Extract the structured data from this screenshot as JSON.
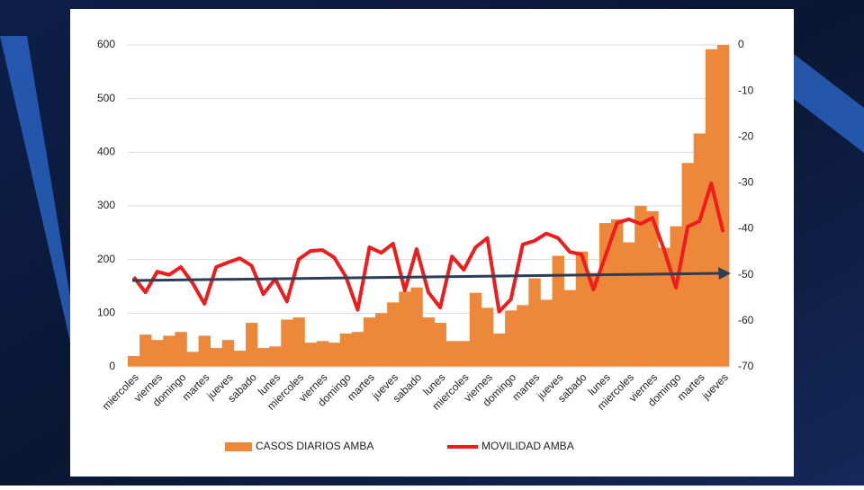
{
  "chart_data": {
    "type": "bar",
    "categories": [
      "miercoles",
      null,
      "viernes",
      null,
      "domingo",
      null,
      "martes",
      null,
      "jueves",
      null,
      "sabado",
      null,
      "lunes",
      null,
      "miercoles",
      null,
      "viernes",
      null,
      "domingo",
      null,
      "martes",
      null,
      "jueves",
      null,
      "sabado",
      null,
      "lunes",
      null,
      "miercoles",
      null,
      "viernes",
      null,
      "domingo",
      null,
      "martes",
      null,
      "jueves",
      null,
      "sabado",
      null,
      "lunes",
      null,
      "miercoles",
      null,
      "viernes",
      null,
      "domingo",
      null,
      "martes",
      null,
      "jueves"
    ],
    "series": [
      {
        "name": "CASOS DIARIOS AMBA",
        "type": "bar",
        "color": "#ed873a",
        "values": [
          20,
          60,
          50,
          58,
          65,
          28,
          58,
          35,
          50,
          30,
          82,
          35,
          38,
          88,
          92,
          45,
          48,
          45,
          62,
          65,
          92,
          100,
          120,
          140,
          148,
          92,
          82,
          48,
          48,
          138,
          110,
          62,
          105,
          115,
          165,
          125,
          207,
          143,
          215,
          175,
          268,
          275,
          232,
          300,
          290,
          222,
          262,
          380,
          435,
          592,
          600
        ]
      },
      {
        "name": "MOVILIDAD AMBA",
        "type": "line",
        "axis": "y2",
        "color": "#ee1c1c",
        "values": [
          -50.5,
          -53.8,
          -49.3,
          -50,
          -48.3,
          -51.8,
          -56.3,
          -48.3,
          -47.3,
          -46.4,
          -48,
          -54.2,
          -50.9,
          -55.8,
          -46.6,
          -44.8,
          -44.6,
          -46.2,
          -50.4,
          -57.6,
          -44,
          -45.2,
          -43.2,
          -53.4,
          -44.4,
          -53.8,
          -57.1,
          -46,
          -48.9,
          -44,
          -42,
          -58,
          -55.3,
          -43.4,
          -42.6,
          -41,
          -42,
          -45,
          -45.6,
          -53.2,
          -46,
          -38.7,
          -37.9,
          -38.9,
          -37.6,
          -44.6,
          -52.8,
          -39.5,
          -38.3,
          -30.1,
          -40.7
        ]
      }
    ],
    "ylim": [
      0,
      600
    ],
    "yticks": [
      0,
      100,
      200,
      300,
      400,
      500,
      600
    ],
    "y2lim": [
      -70,
      0
    ],
    "y2ticks": [
      -70,
      -60,
      -50,
      -40,
      -30,
      -20,
      -10,
      0
    ],
    "grid": true,
    "legend": "bottom"
  }
}
